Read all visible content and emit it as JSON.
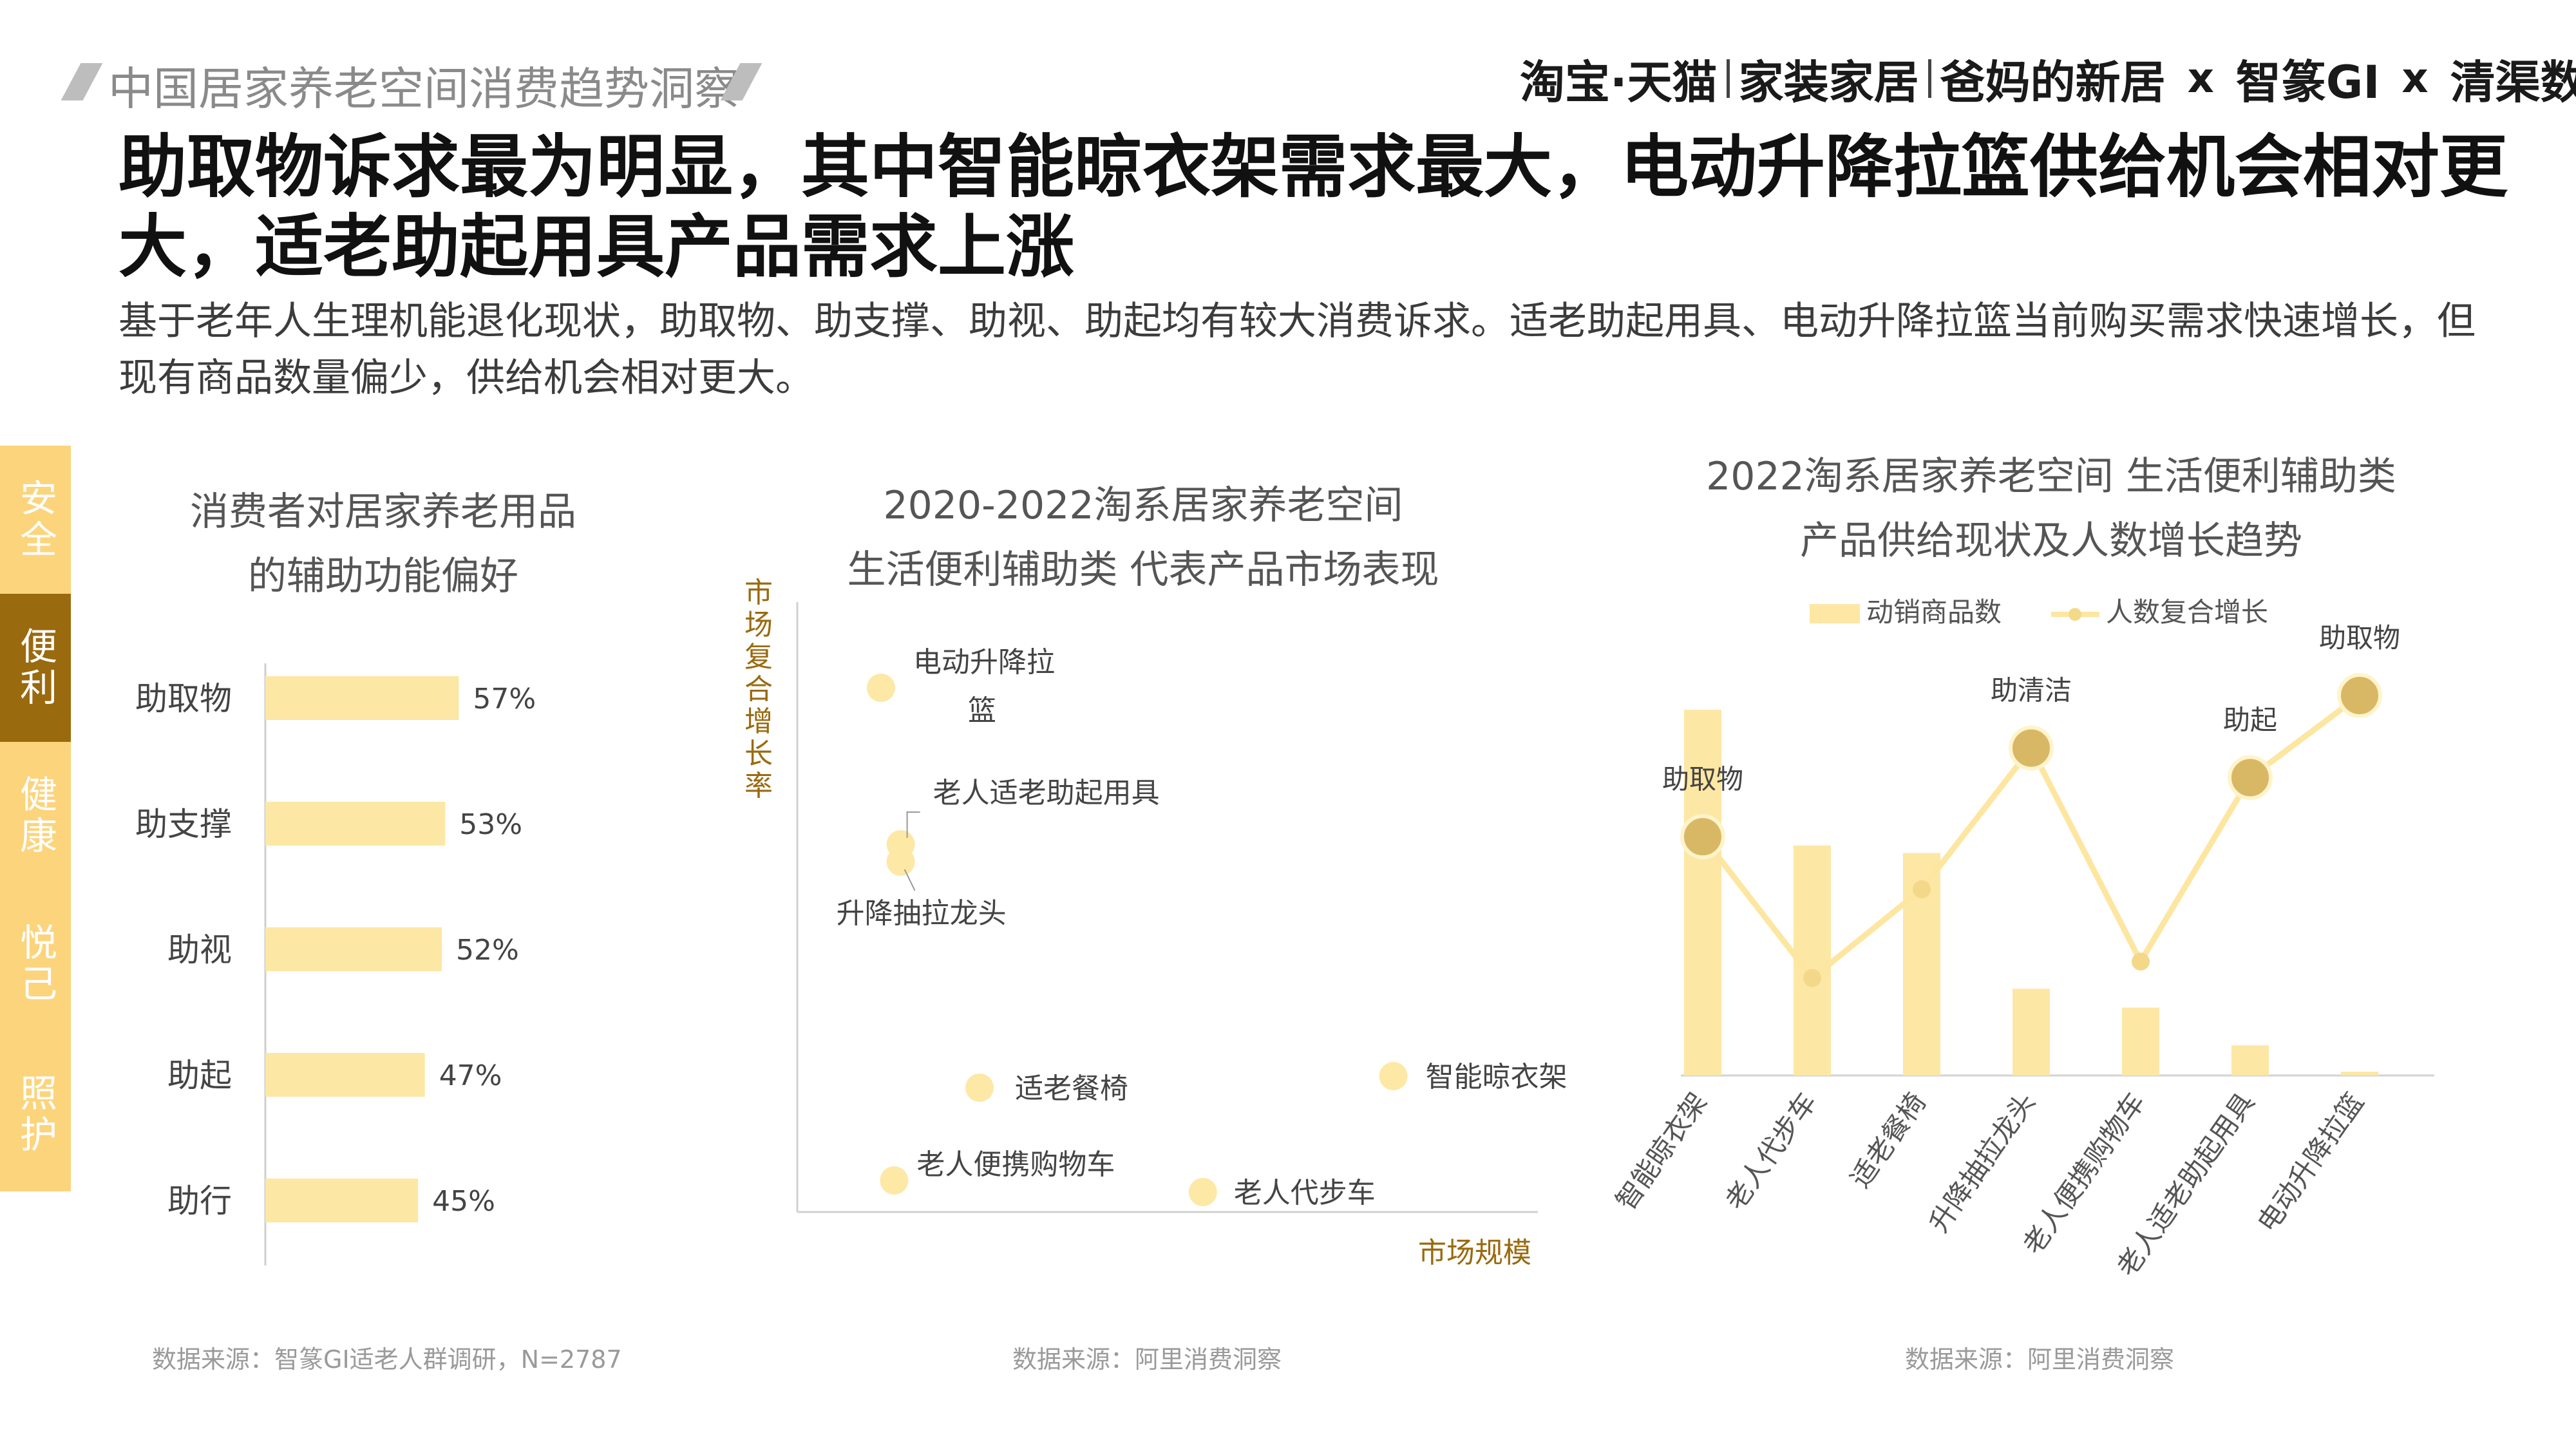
{
  "header": {
    "report_title": "中国居家养老空间消费趋势洞察",
    "brands": [
      "淘宝·天猫",
      "家装家居",
      "爸妈的新居",
      "x",
      "智篆GI",
      "x",
      "清渠数据"
    ]
  },
  "headline": "助取物诉求最为明显，其中智能晾衣架需求最大，电动升降拉篮供给机会相对更大，适老助起用具产品需求上涨",
  "subtitle": "基于老年人生理机能退化现状，助取物、助支撑、助视、助起均有较大消费诉求。适老助起用具、电动升降拉篮当前购买需求快速增长，但现有商品数量偏少，供给机会相对更大。",
  "side_tabs": [
    {
      "label": "安全",
      "active": false
    },
    {
      "label": "便利",
      "active": true
    },
    {
      "label": "健康",
      "active": false
    },
    {
      "label": "悦己",
      "active": false
    },
    {
      "label": "照护",
      "active": false
    }
  ],
  "chart1_title": [
    "消费者对居家养老用品",
    "的辅助功能偏好"
  ],
  "chart2_title": [
    "2020-2022淘系居家养老空间",
    "生活便利辅助类 代表产品市场表现"
  ],
  "chart3_title": [
    "2022淘系居家养老空间 生活便利辅助类",
    "产品供给现状及人数增长趋势"
  ],
  "sources": [
    "数据来源：智篆GI适老人群调研，N=2787",
    "数据来源：阿里消费洞察",
    "数据来源：阿里消费洞察"
  ],
  "colors": {
    "bar": "#fde7a4",
    "dot": "#fde8a6",
    "accent": "#9a6a0e",
    "tab": "#fcd47c",
    "line": "#fde6a0"
  },
  "chart_data": [
    {
      "type": "bar",
      "orientation": "horizontal",
      "categories": [
        "助取物",
        "助支撑",
        "助视",
        "助起",
        "助行"
      ],
      "values": [
        57,
        53,
        52,
        47,
        45
      ],
      "value_labels": [
        "57%",
        "53%",
        "52%",
        "47%",
        "45%"
      ],
      "xlim": [
        0,
        100
      ]
    },
    {
      "type": "scatter",
      "xlabel": "市场规模",
      "ylabel": "市场复合增长率",
      "points": [
        {
          "label": "电动升降拉篮",
          "x": 0.0,
          "y": 0.88
        },
        {
          "label": "老人适老助起用具",
          "x": 0.03,
          "y": 0.61
        },
        {
          "label": "升降抽拉龙头",
          "x": 0.03,
          "y": 0.58
        },
        {
          "label": "适老餐椅",
          "x": 0.15,
          "y": 0.19
        },
        {
          "label": "智能晾衣架",
          "x": 0.78,
          "y": 0.21
        },
        {
          "label": "老人便携购物车",
          "x": 0.02,
          "y": 0.03
        },
        {
          "label": "老人代步车",
          "x": 0.49,
          "y": 0.01
        }
      ],
      "xlim": [
        0,
        1
      ],
      "ylim": [
        0,
        1
      ]
    },
    {
      "type": "bar",
      "categories": [
        "智能晾衣架",
        "老人代步车",
        "适老餐椅",
        "升降抽拉龙头",
        "老人便携购物车",
        "老人适老助起用具",
        "电动升降拉篮"
      ],
      "series": [
        {
          "name": "动销商品数",
          "type": "bar",
          "values": [
            0.97,
            0.61,
            0.59,
            0.23,
            0.18,
            0.08,
            0.01
          ]
        },
        {
          "name": "人数复合增长",
          "type": "line",
          "values": [
            0.57,
            0.14,
            0.41,
            0.84,
            0.19,
            0.75,
            1.0
          ]
        }
      ],
      "annotations": [
        {
          "label": "助取物",
          "index": 0
        },
        {
          "label": "助清洁",
          "index": 3
        },
        {
          "label": "助起",
          "index": 5
        },
        {
          "label": "助取物",
          "index": 6
        }
      ],
      "ylim": [
        0,
        1.1
      ],
      "legend": "top"
    }
  ]
}
